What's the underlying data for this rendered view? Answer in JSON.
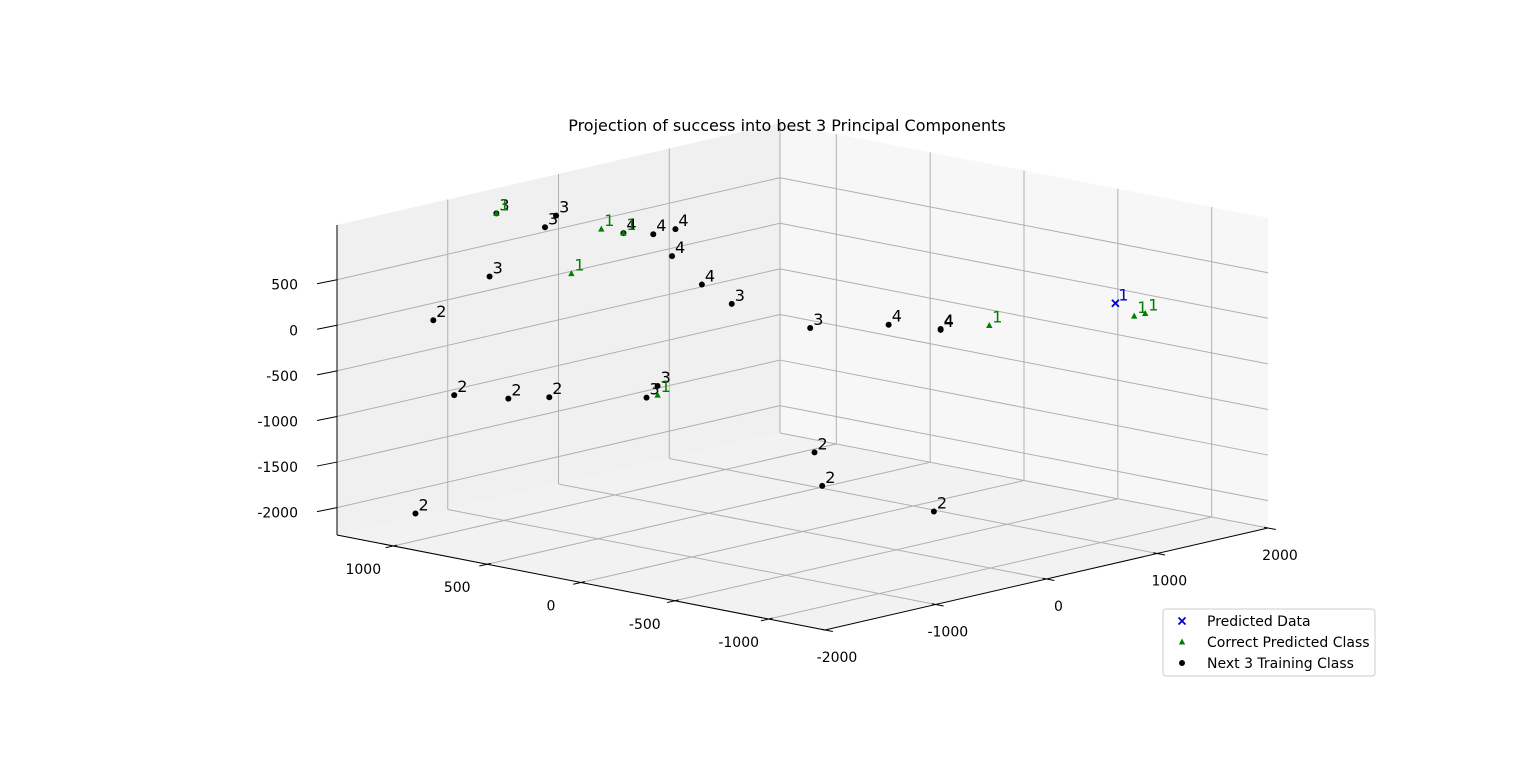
{
  "chart_data": {
    "type": "scatter",
    "projection": "3d",
    "title": "Projection of success into best 3 Principal Components",
    "xlabel": "",
    "ylabel": "",
    "zlabel": "",
    "axes": {
      "x": {
        "range": [
          -2000,
          2000
        ],
        "ticks": [
          "-2000",
          "-1000",
          "0",
          "1000",
          "2000"
        ]
      },
      "y": {
        "range": [
          -1300,
          1300
        ],
        "ticks": [
          "-1000",
          "-500",
          "0",
          "500",
          "1000"
        ]
      },
      "z": {
        "range": [
          -2300,
          1100
        ],
        "ticks": [
          "-2000",
          "-1500",
          "-1000",
          "-500",
          "0",
          "500"
        ]
      }
    },
    "grid": true,
    "legend": {
      "placement": "lower-right"
    },
    "series": [
      {
        "name": "Next 3 Training Class",
        "marker": "circle",
        "color": "#000000",
        "points": [
          {
            "x": -1450,
            "y": 1000,
            "z": -800,
            "label": "2"
          },
          {
            "x": -1300,
            "y": 800,
            "z": -800,
            "label": "2"
          },
          {
            "x": -1100,
            "y": 700,
            "z": -800,
            "label": "2"
          },
          {
            "x": -1300,
            "y": 1200,
            "z": -100,
            "label": "2"
          },
          {
            "x": -1800,
            "y": 1000,
            "z": -2000,
            "label": "2"
          },
          {
            "x": -500,
            "y": -400,
            "z": -1500,
            "label": "2"
          },
          {
            "x": -400,
            "y": -300,
            "z": -1200,
            "label": "2"
          },
          {
            "x": 0,
            "y": -700,
            "z": -1800,
            "label": "2"
          },
          {
            "x": -1300,
            "y": 900,
            "z": 500,
            "label": "3"
          },
          {
            "x": -900,
            "y": 1100,
            "z": 1000,
            "label": "3"
          },
          {
            "x": -800,
            "y": 900,
            "z": 900,
            "label": "3"
          },
          {
            "x": -700,
            "y": 900,
            "z": 1000,
            "label": "3"
          },
          {
            "x": -900,
            "y": 300,
            "z": -700,
            "label": "3"
          },
          {
            "x": -800,
            "y": 300,
            "z": -600,
            "label": "3"
          },
          {
            "x": -300,
            "y": 200,
            "z": 200,
            "label": "3"
          },
          {
            "x": -100,
            "y": -100,
            "z": 0,
            "label": "3"
          },
          {
            "x": -600,
            "y": 600,
            "z": 900,
            "label": "4"
          },
          {
            "x": -500,
            "y": 500,
            "z": 900,
            "label": "4"
          },
          {
            "x": -300,
            "y": 500,
            "z": 900,
            "label": "4"
          },
          {
            "x": -500,
            "y": 400,
            "z": 700,
            "label": "4"
          },
          {
            "x": -400,
            "y": 300,
            "z": 400,
            "label": "4"
          },
          {
            "x": 100,
            "y": -400,
            "z": 100,
            "label": "4"
          },
          {
            "x": 400,
            "y": -500,
            "z": 0,
            "label": "4"
          },
          {
            "x": 400,
            "y": -500,
            "z": 10,
            "label": "4"
          }
        ]
      },
      {
        "name": "Correct Predicted Class",
        "marker": "triangle",
        "color": "#008000",
        "points": [
          {
            "x": -900,
            "y": 1100,
            "z": 1000,
            "label": "1"
          },
          {
            "x": -800,
            "y": 600,
            "z": 1000,
            "label": "1"
          },
          {
            "x": -600,
            "y": 600,
            "z": 900,
            "label": "1"
          },
          {
            "x": -900,
            "y": 700,
            "z": 500,
            "label": "1"
          },
          {
            "x": -800,
            "y": 300,
            "z": -700,
            "label": "1"
          },
          {
            "x": 500,
            "y": -700,
            "z": 100,
            "label": "1"
          },
          {
            "x": 1300,
            "y": -1000,
            "z": 100,
            "label": "1"
          },
          {
            "x": 1400,
            "y": -1000,
            "z": 100,
            "label": "1"
          }
        ]
      },
      {
        "name": "Predicted Data",
        "marker": "x",
        "color": "#0000cc",
        "points": [
          {
            "x": 1300,
            "y": -900,
            "z": 200,
            "label": "1"
          }
        ]
      }
    ]
  }
}
